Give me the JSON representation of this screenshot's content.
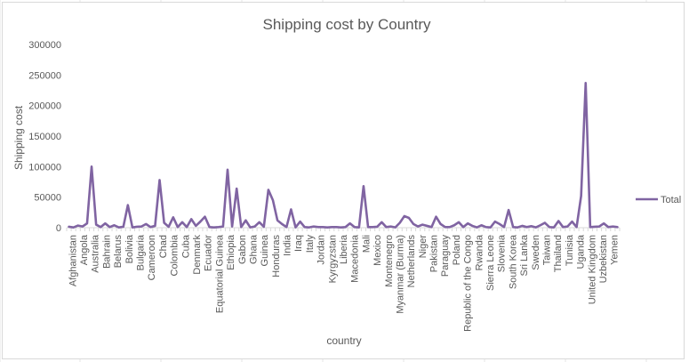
{
  "chart_data": {
    "type": "line",
    "title": "Shipping cost by Country",
    "xlabel": "country",
    "ylabel": "Shipping cost",
    "ylim": [
      0,
      300000
    ],
    "yticks": [
      "300000",
      "250000",
      "200000",
      "150000",
      "100000",
      "50000",
      "0"
    ],
    "legend_position": "right",
    "color": "#8064a2",
    "labeled_categories": [
      "Afghanistan",
      "Angola",
      "Australia",
      "Bahrain",
      "Belarus",
      "Bolivia",
      "Bulgaria",
      "Cameroon",
      "Chad",
      "Colombia",
      "Cuba",
      "Denmark",
      "Ecuador",
      "Equatorial Guinea",
      "Ethiopia",
      "Gabon",
      "Ghana",
      "Guinea",
      "Honduras",
      "India",
      "Iraq",
      "Italy",
      "Jordan",
      "Kyrgyzstan",
      "Liberia",
      "Macedonia",
      "Mali",
      "Mexico",
      "Montenegro",
      "Myanmar (Burma)",
      "Netherlands",
      "Niger",
      "Pakistan",
      "Paraguay",
      "Poland",
      "Republic of the Congo",
      "Rwanda",
      "Sierra Leone",
      "Slovenia",
      "South Korea",
      "Sri Lanka",
      "Sweden",
      "Taiwan",
      "Thailand",
      "Tunisia",
      "Uganda",
      "United Kingdom",
      "Uzbekistan",
      "Yemen"
    ],
    "series": [
      {
        "name": "Total",
        "values": [
          1500,
          500,
          3500,
          2000,
          7000,
          100000,
          5000,
          1000,
          7000,
          1000,
          4000,
          500,
          1500,
          37000,
          500,
          1500,
          2000,
          6000,
          1000,
          3000,
          78000,
          8000,
          1500,
          17000,
          1000,
          9000,
          1000,
          14000,
          3000,
          10000,
          18000,
          1000,
          500,
          1000,
          2000,
          95000,
          2000,
          64000,
          1000,
          12000,
          500,
          2000,
          9000,
          1500,
          62000,
          45000,
          12000,
          6000,
          1000,
          30000,
          500,
          10000,
          1000,
          500,
          2000,
          1000,
          1000,
          500,
          1000,
          1000,
          500,
          1000,
          7000,
          1000,
          500,
          68000,
          1000,
          1000,
          1500,
          9000,
          1000,
          2000,
          500,
          8000,
          19000,
          16000,
          6000,
          2000,
          5000,
          3000,
          1000,
          18000,
          6000,
          1000,
          1000,
          4000,
          9000,
          1000,
          7000,
          3000,
          500,
          4000,
          1000,
          500,
          10000,
          6000,
          1000,
          29000,
          1000,
          500,
          3000,
          1000,
          2500,
          500,
          4000,
          8000,
          1000,
          500,
          11000,
          1000,
          2000,
          10000,
          1000,
          52000,
          237000,
          1000,
          1500,
          2000,
          7000,
          1000,
          2000,
          1000
        ]
      }
    ]
  }
}
